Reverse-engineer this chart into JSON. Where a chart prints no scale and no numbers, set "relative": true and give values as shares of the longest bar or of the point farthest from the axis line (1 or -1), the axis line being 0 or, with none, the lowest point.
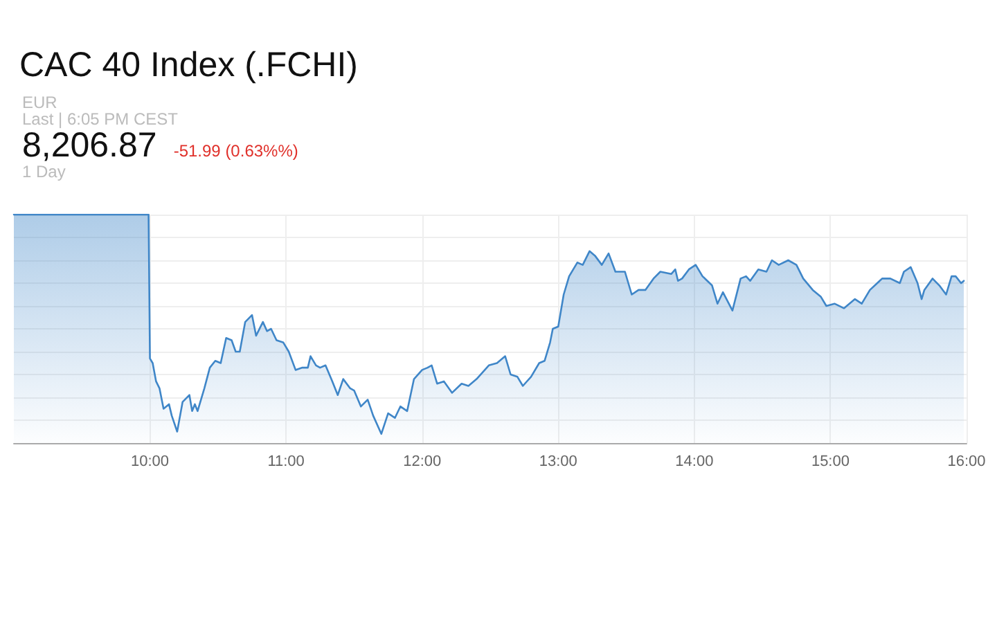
{
  "chart_data": {
    "type": "area",
    "title": "CAC 40 Index (.FCHI)",
    "annotations": [
      "EUR",
      "Last | 6:05 PM CEST",
      "8,206.87",
      "-51.99 (0.63%%)",
      "1 Day"
    ],
    "relative": true,
    "grid": true,
    "tick_labels": "x",
    "marker": "none",
    "line_style": "solid",
    "xlim": [
      9,
      16
    ],
    "xticks": [
      {
        "value": 10,
        "label": "10:00"
      },
      {
        "value": 11,
        "label": "11:00"
      },
      {
        "value": 12,
        "label": "12:00"
      },
      {
        "value": 13,
        "label": "13:00"
      },
      {
        "value": 14,
        "label": "14:00"
      },
      {
        "value": 15,
        "label": "15:00"
      },
      {
        "value": 16,
        "label": "16:00"
      }
    ],
    "series": [
      {
        "color": "#3f86c8",
        "x": [
          9.0,
          9.99,
          10.0,
          10.02,
          10.045,
          10.07,
          10.1,
          10.14,
          10.16,
          10.2,
          10.24,
          10.29,
          10.31,
          10.33,
          10.35,
          10.4,
          10.44,
          10.48,
          10.52,
          10.56,
          10.6,
          10.63,
          10.66,
          10.7,
          10.75,
          10.78,
          10.83,
          10.86,
          10.89,
          10.93,
          10.98,
          11.02,
          11.07,
          11.12,
          11.16,
          11.18,
          11.22,
          11.25,
          11.29,
          11.34,
          11.38,
          11.42,
          11.47,
          11.5,
          11.55,
          11.6,
          11.64,
          11.7,
          11.75,
          11.8,
          11.84,
          11.89,
          11.94,
          12.0,
          12.04,
          12.07,
          12.11,
          12.16,
          12.22,
          12.29,
          12.34,
          12.4,
          12.49,
          12.55,
          12.61,
          12.65,
          12.7,
          12.74,
          12.8,
          12.86,
          12.9,
          12.94,
          12.96,
          13.0,
          13.04,
          13.08,
          13.14,
          13.18,
          13.23,
          13.27,
          13.32,
          13.37,
          13.42,
          13.49,
          13.54,
          13.59,
          13.64,
          13.7,
          13.75,
          13.83,
          13.86,
          13.88,
          13.91,
          13.96,
          14.01,
          14.06,
          14.13,
          14.17,
          14.21,
          14.28,
          14.34,
          14.38,
          14.41,
          14.47,
          14.53,
          14.57,
          14.62,
          14.69,
          14.75,
          14.8,
          14.87,
          14.93,
          14.97,
          15.03,
          15.1,
          15.18,
          15.23,
          15.29,
          15.38,
          15.44,
          15.51,
          15.54,
          15.59,
          15.64,
          15.67,
          15.69,
          15.75,
          15.8,
          15.85,
          15.89,
          15.92,
          15.96,
          15.98
        ],
        "values": [
          1,
          1,
          0.37,
          0.35,
          0.27,
          0.24,
          0.15,
          0.17,
          0.12,
          0.05,
          0.18,
          0.21,
          0.14,
          0.17,
          0.14,
          0.24,
          0.33,
          0.36,
          0.35,
          0.46,
          0.45,
          0.4,
          0.4,
          0.53,
          0.56,
          0.47,
          0.53,
          0.49,
          0.5,
          0.45,
          0.44,
          0.4,
          0.32,
          0.33,
          0.33,
          0.38,
          0.34,
          0.33,
          0.34,
          0.27,
          0.21,
          0.28,
          0.24,
          0.23,
          0.16,
          0.19,
          0.12,
          0.04,
          0.13,
          0.11,
          0.16,
          0.14,
          0.28,
          0.32,
          0.33,
          0.34,
          0.26,
          0.27,
          0.22,
          0.26,
          0.25,
          0.28,
          0.34,
          0.35,
          0.38,
          0.3,
          0.29,
          0.25,
          0.29,
          0.35,
          0.36,
          0.44,
          0.5,
          0.51,
          0.65,
          0.73,
          0.79,
          0.78,
          0.84,
          0.82,
          0.78,
          0.83,
          0.75,
          0.75,
          0.65,
          0.67,
          0.67,
          0.72,
          0.75,
          0.74,
          0.76,
          0.71,
          0.72,
          0.76,
          0.78,
          0.73,
          0.69,
          0.61,
          0.66,
          0.58,
          0.72,
          0.73,
          0.71,
          0.76,
          0.75,
          0.8,
          0.78,
          0.8,
          0.78,
          0.72,
          0.67,
          0.64,
          0.6,
          0.61,
          0.59,
          0.63,
          0.61,
          0.67,
          0.72,
          0.72,
          0.7,
          0.75,
          0.77,
          0.7,
          0.63,
          0.67,
          0.72,
          0.69,
          0.65,
          0.73,
          0.73,
          0.7,
          0.71
        ]
      }
    ]
  }
}
